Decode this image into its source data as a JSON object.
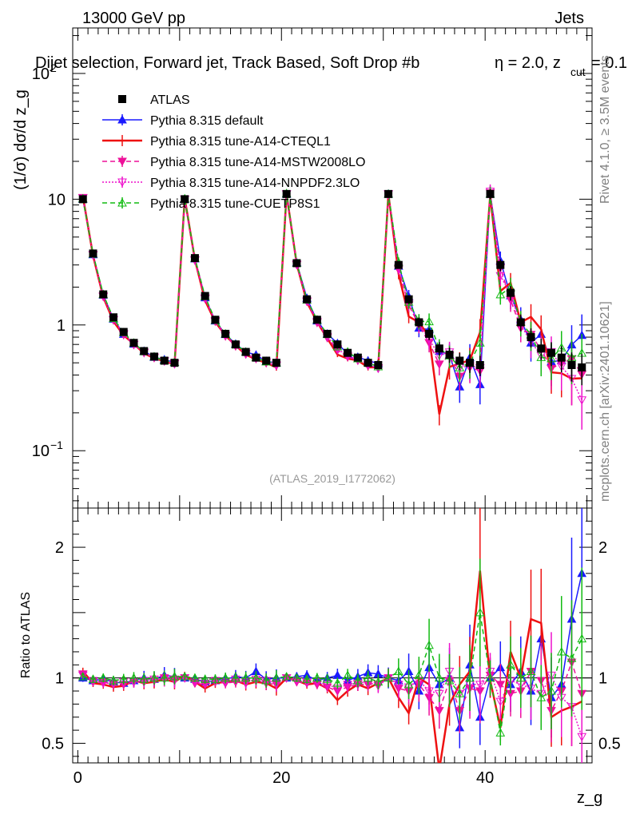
{
  "header": {
    "left": "13000 GeV pp",
    "right": "Jets",
    "title_main": "Dijet selection, Forward jet, Track Based, Soft Drop #b",
    "title_eta": "η = 2.0, z",
    "title_sub": "cut",
    "title_tail": " = 0.1",
    "analysis": "(ATLAS_2019_I1772062)",
    "side_rivet": "Rivet 4.1.0, ≥ 3.5M events",
    "side_mcplots": "mcplots.cern.ch [arXiv:2401.10621]"
  },
  "chart_data": {
    "type": "line",
    "title": "Dijet selection, Forward jet, Track Based, Soft Drop #b η = 2.0, z_cut = 0.1",
    "xlabel": "z_g",
    "ylabel": "(1/σ) dσ/d z_g",
    "ratio_ylabel": "Ratio to ATLAS",
    "xlim": [
      -0.5,
      50.5
    ],
    "ylim": [
      0.035,
      230
    ],
    "yscale": "log",
    "ratio_ylim": [
      0.35,
      2.3
    ],
    "x_ticks": [
      "0",
      "20",
      "40"
    ],
    "y_ticks": [
      "10^−1",
      "1",
      "10",
      "10^2"
    ],
    "ratio_ticks": [
      "0.5",
      "1",
      "2"
    ],
    "x": [
      0.5,
      1.5,
      2.5,
      3.5,
      4.5,
      5.5,
      6.5,
      7.5,
      8.5,
      9.5,
      10.5,
      11.5,
      12.5,
      13.5,
      14.5,
      15.5,
      16.5,
      17.5,
      18.5,
      19.5,
      20.5,
      21.5,
      22.5,
      23.5,
      24.5,
      25.5,
      26.5,
      27.5,
      28.5,
      29.5,
      30.5,
      31.5,
      32.5,
      33.5,
      34.5,
      35.5,
      36.5,
      37.5,
      38.5,
      39.5,
      40.5,
      41.5,
      42.5,
      43.5,
      44.5,
      45.5,
      46.5,
      47.5,
      48.5,
      49.5
    ],
    "atlas": {
      "name": "ATLAS",
      "color": "#000000",
      "values": [
        10,
        3.7,
        1.75,
        1.15,
        0.88,
        0.72,
        0.62,
        0.56,
        0.52,
        0.5,
        10,
        3.4,
        1.7,
        1.1,
        0.85,
        0.7,
        0.61,
        0.55,
        0.52,
        0.5,
        11,
        3.1,
        1.6,
        1.1,
        0.85,
        0.7,
        0.6,
        0.55,
        0.5,
        0.48,
        11,
        3.0,
        1.6,
        1.05,
        0.85,
        0.65,
        0.58,
        0.52,
        0.5,
        0.48,
        11,
        3.0,
        1.8,
        1.05,
        0.8,
        0.65,
        0.6,
        0.55,
        0.48,
        0.46
      ]
    },
    "series": [
      {
        "name": "Pythia 8.315 default",
        "color": "#1a1aff",
        "style": "solid",
        "marker": "triangle-filled",
        "ratio": [
          1.0,
          0.98,
          0.99,
          0.97,
          0.96,
          0.98,
          1.0,
          0.99,
          1.02,
          1.01,
          1.0,
          0.99,
          0.97,
          0.98,
          0.99,
          1.01,
          1.0,
          1.05,
          0.99,
          1.0,
          1.0,
          1.01,
          1.02,
          0.98,
          1.0,
          1.02,
          0.98,
          1.01,
          1.04,
          1.03,
          1.0,
          0.98,
          1.05,
          0.9,
          1.08,
          0.95,
          1.0,
          0.62,
          1.1,
          0.7,
          1.0,
          1.08,
          0.95,
          1.05,
          0.9,
          1.3,
          0.85,
          0.95,
          1.45,
          1.8
        ]
      },
      {
        "name": "Pythia 8.315 tune-A14-CTEQL1",
        "color": "#ee1111",
        "style": "solid",
        "marker": "none",
        "ratio": [
          1.05,
          0.96,
          0.95,
          0.93,
          0.94,
          0.98,
          0.96,
          0.97,
          0.99,
          0.97,
          1.02,
          0.97,
          0.92,
          0.96,
          0.97,
          0.98,
          0.95,
          0.97,
          0.96,
          0.92,
          1.0,
          0.98,
          0.95,
          0.96,
          0.92,
          0.83,
          0.9,
          0.95,
          0.92,
          0.96,
          1.0,
          0.85,
          0.73,
          1.0,
          0.95,
          0.3,
          0.8,
          0.95,
          1.05,
          1.82,
          0.98,
          0.62,
          1.2,
          1.0,
          1.45,
          1.42,
          0.7,
          0.75,
          0.78,
          0.82
        ]
      },
      {
        "name": "Pythia 8.315 tune-A14-MSTW2008LO",
        "color": "#ee1199",
        "style": "dashed",
        "marker": "triangle-down",
        "ratio": [
          1.03,
          0.97,
          0.97,
          0.95,
          0.95,
          0.97,
          0.97,
          0.98,
          1.0,
          0.99,
          1.0,
          0.96,
          0.95,
          0.97,
          0.96,
          0.97,
          0.96,
          0.98,
          0.96,
          0.95,
          1.0,
          0.97,
          0.96,
          0.95,
          0.93,
          0.9,
          0.93,
          0.95,
          0.95,
          0.95,
          1.0,
          0.92,
          0.9,
          0.95,
          0.85,
          0.75,
          0.98,
          0.75,
          0.92,
          0.9,
          1.02,
          0.95,
          0.88,
          0.9,
          1.05,
          0.98,
          0.75,
          0.9,
          1.12,
          0.88
        ]
      },
      {
        "name": "Pythia 8.315 tune-A14-NNPDF2.3LO",
        "color": "#ee11cc",
        "style": "dotted",
        "marker": "triangle-down-open",
        "ratio": [
          1.02,
          0.98,
          0.96,
          0.96,
          0.97,
          0.97,
          0.98,
          0.99,
          0.99,
          0.98,
          1.0,
          0.97,
          0.96,
          0.98,
          0.97,
          0.99,
          0.97,
          0.99,
          0.98,
          0.96,
          1.0,
          0.98,
          0.97,
          0.97,
          0.95,
          0.92,
          0.95,
          0.96,
          0.97,
          0.94,
          1.0,
          0.95,
          0.93,
          0.98,
          0.9,
          0.88,
          1.05,
          0.88,
          0.95,
          0.95,
          1.05,
          0.82,
          0.98,
          0.95,
          0.92,
          0.88,
          1.02,
          0.85,
          0.78,
          0.55
        ]
      },
      {
        "name": "Pythia 8.315 tune-CUETP8S1",
        "color": "#11bb11",
        "style": "dashed",
        "marker": "triangle-open",
        "ratio": [
          1.01,
          0.99,
          1.0,
          0.98,
          0.99,
          1.0,
          0.99,
          1.0,
          1.0,
          1.01,
          1.01,
          1.0,
          0.99,
          0.99,
          1.0,
          1.0,
          1.0,
          1.0,
          0.98,
          1.0,
          1.01,
          1.0,
          0.99,
          1.0,
          0.99,
          0.96,
          1.02,
          0.98,
          1.0,
          0.97,
          1.0,
          1.05,
          0.95,
          1.02,
          1.25,
          1.0,
          0.98,
          0.88,
          1.0,
          1.5,
          1.0,
          0.58,
          1.1,
          1.0,
          1.05,
          0.85,
          0.9,
          1.2,
          1.15,
          1.3
        ]
      }
    ]
  }
}
